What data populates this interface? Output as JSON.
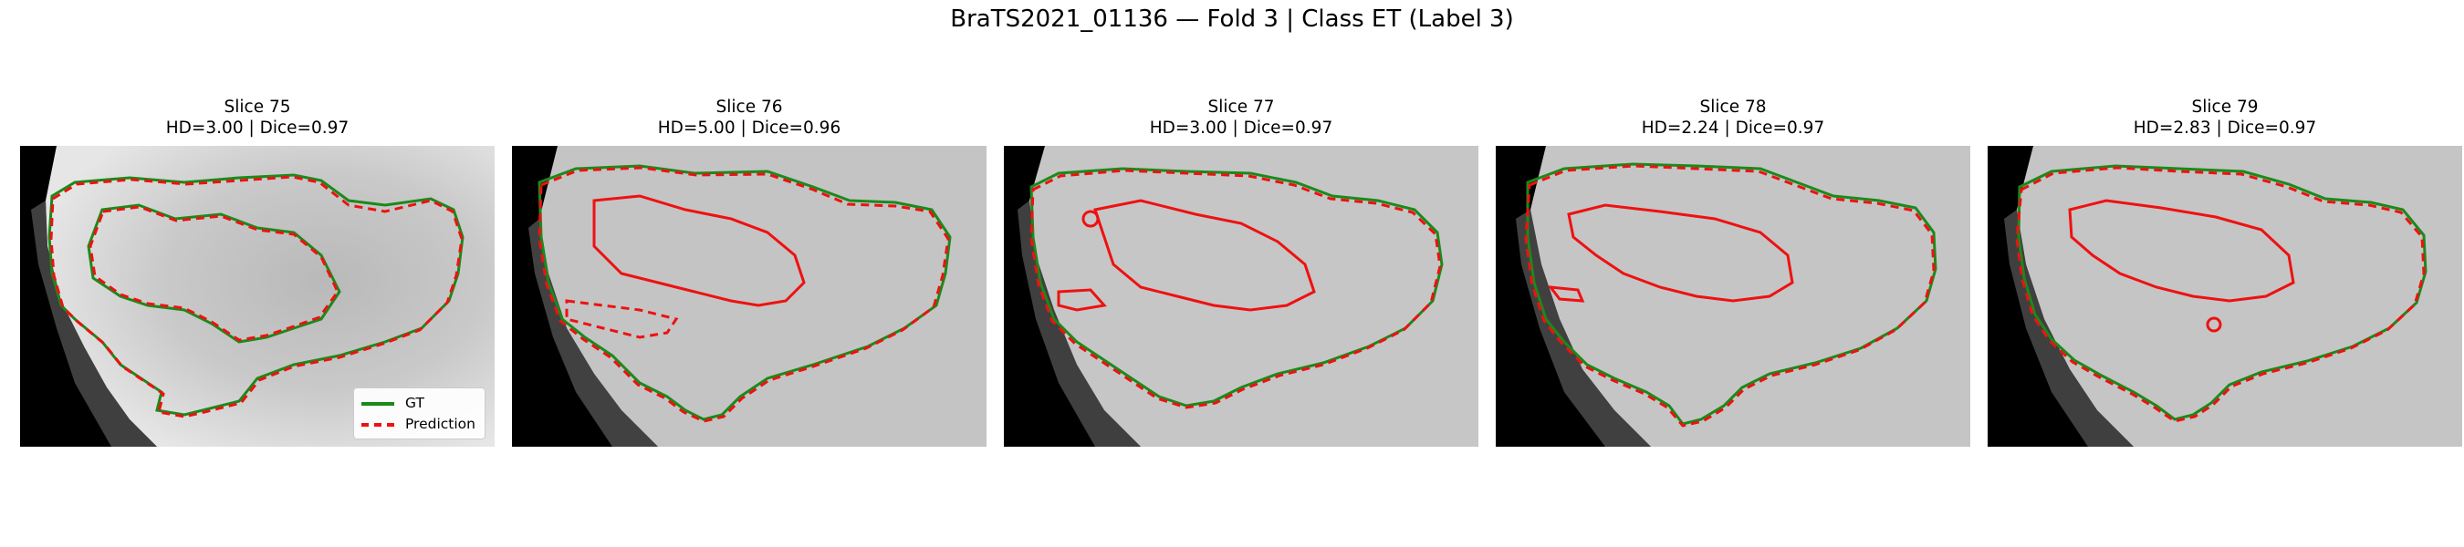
{
  "figure_title": "BraTS2021_01136 — Fold 3 | Class ET (Label 3)",
  "panels": [
    {
      "slice": "Slice 75",
      "metrics": "HD=3.00 | Dice=0.97"
    },
    {
      "slice": "Slice 76",
      "metrics": "HD=5.00 | Dice=0.96"
    },
    {
      "slice": "Slice 77",
      "metrics": "HD=3.00 | Dice=0.97"
    },
    {
      "slice": "Slice 78",
      "metrics": "HD=2.24 | Dice=0.97"
    },
    {
      "slice": "Slice 79",
      "metrics": "HD=2.83 | Dice=0.97"
    }
  ],
  "legend": {
    "gt": "GT",
    "prediction": "Prediction"
  },
  "colors": {
    "gt": "#1a8a1a",
    "prediction": "#ee1111",
    "background": "#000000"
  }
}
